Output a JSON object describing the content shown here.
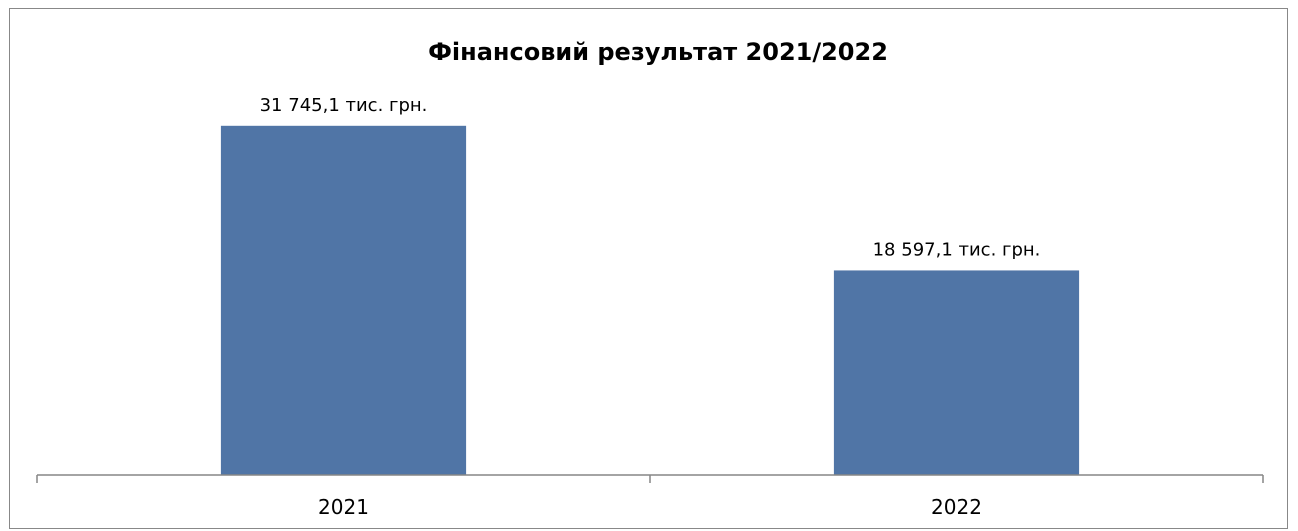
{
  "chart_data": {
    "type": "bar",
    "title": "Фінансовий результат 2021/2022",
    "xlabel": "",
    "ylabel": "",
    "categories": [
      "2021",
      "2022"
    ],
    "values": [
      31745.1,
      18597.1
    ],
    "data_labels": [
      "31 745,1 тис. грн.",
      "18 597,1 тис. грн."
    ],
    "ylim": [
      0,
      35000
    ],
    "grid": false,
    "legend": "none",
    "bar_color": "#5075a6",
    "axis_color": "#868686"
  }
}
